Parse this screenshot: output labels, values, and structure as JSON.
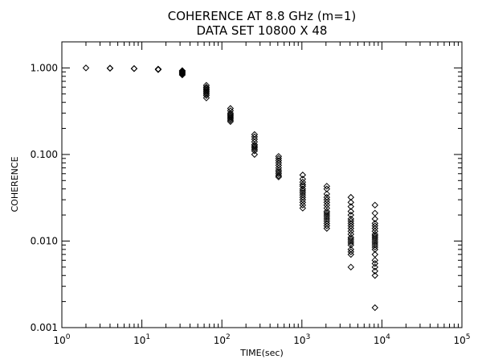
{
  "chart_data": {
    "type": "scatter",
    "title": "COHERENCE AT 8.8 GHz  (m=1)",
    "subtitle": "DATA SET  10800 X  48",
    "xlabel": "TIME(sec)",
    "ylabel": "COHERENCE",
    "xscale": "log",
    "yscale": "log",
    "xlim": [
      1,
      100000
    ],
    "ylim": [
      0.001,
      2
    ],
    "x_ticks": [
      {
        "value": 1,
        "base": "10",
        "exp": "0"
      },
      {
        "value": 10,
        "base": "10",
        "exp": "1"
      },
      {
        "value": 100,
        "base": "10",
        "exp": "2"
      },
      {
        "value": 1000,
        "base": "10",
        "exp": "3"
      },
      {
        "value": 10000,
        "base": "10",
        "exp": "4"
      },
      {
        "value": 100000,
        "base": "10",
        "exp": "5"
      }
    ],
    "y_ticks": [
      {
        "value": 1,
        "label": "1.000"
      },
      {
        "value": 0.1,
        "label": "0.100"
      },
      {
        "value": 0.01,
        "label": "0.010"
      },
      {
        "value": 0.001,
        "label": "0.001"
      }
    ],
    "grid": false,
    "marker": "diamond",
    "marker_color": "#000000",
    "groups": [
      {
        "x": 2,
        "y": [
          1.0
        ]
      },
      {
        "x": 4,
        "y": [
          0.995,
          0.99
        ]
      },
      {
        "x": 8,
        "y": [
          0.985,
          0.98
        ]
      },
      {
        "x": 16,
        "y": [
          0.97,
          0.96,
          0.955
        ]
      },
      {
        "x": 32,
        "y": [
          0.93,
          0.91,
          0.89,
          0.87,
          0.85,
          0.83
        ]
      },
      {
        "x": 64,
        "y": [
          0.63,
          0.6,
          0.58,
          0.56,
          0.54,
          0.52,
          0.5,
          0.48,
          0.45
        ]
      },
      {
        "x": 128,
        "y": [
          0.34,
          0.32,
          0.3,
          0.29,
          0.28,
          0.27,
          0.26,
          0.25,
          0.24
        ]
      },
      {
        "x": 256,
        "y": [
          0.17,
          0.16,
          0.15,
          0.14,
          0.13,
          0.125,
          0.12,
          0.115,
          0.11,
          0.1
        ]
      },
      {
        "x": 512,
        "y": [
          0.095,
          0.09,
          0.085,
          0.08,
          0.075,
          0.07,
          0.066,
          0.063,
          0.06,
          0.057,
          0.055
        ]
      },
      {
        "x": 1024,
        "y": [
          0.058,
          0.052,
          0.048,
          0.045,
          0.043,
          0.04,
          0.038,
          0.036,
          0.034,
          0.032,
          0.03,
          0.028,
          0.026,
          0.024
        ]
      },
      {
        "x": 2048,
        "y": [
          0.043,
          0.04,
          0.035,
          0.032,
          0.03,
          0.028,
          0.026,
          0.024,
          0.022,
          0.021,
          0.02,
          0.019,
          0.018,
          0.017,
          0.016,
          0.015,
          0.014
        ]
      },
      {
        "x": 4096,
        "y": [
          0.032,
          0.028,
          0.025,
          0.022,
          0.02,
          0.018,
          0.017,
          0.016,
          0.015,
          0.014,
          0.013,
          0.012,
          0.011,
          0.0105,
          0.01,
          0.0095,
          0.009,
          0.008,
          0.0075,
          0.007,
          0.005
        ]
      },
      {
        "x": 8192,
        "y": [
          0.026,
          0.021,
          0.018,
          0.016,
          0.015,
          0.014,
          0.013,
          0.012,
          0.0115,
          0.011,
          0.0105,
          0.01,
          0.0095,
          0.009,
          0.0085,
          0.008,
          0.007,
          0.006,
          0.0055,
          0.005,
          0.0045,
          0.004,
          0.0017
        ]
      }
    ]
  }
}
